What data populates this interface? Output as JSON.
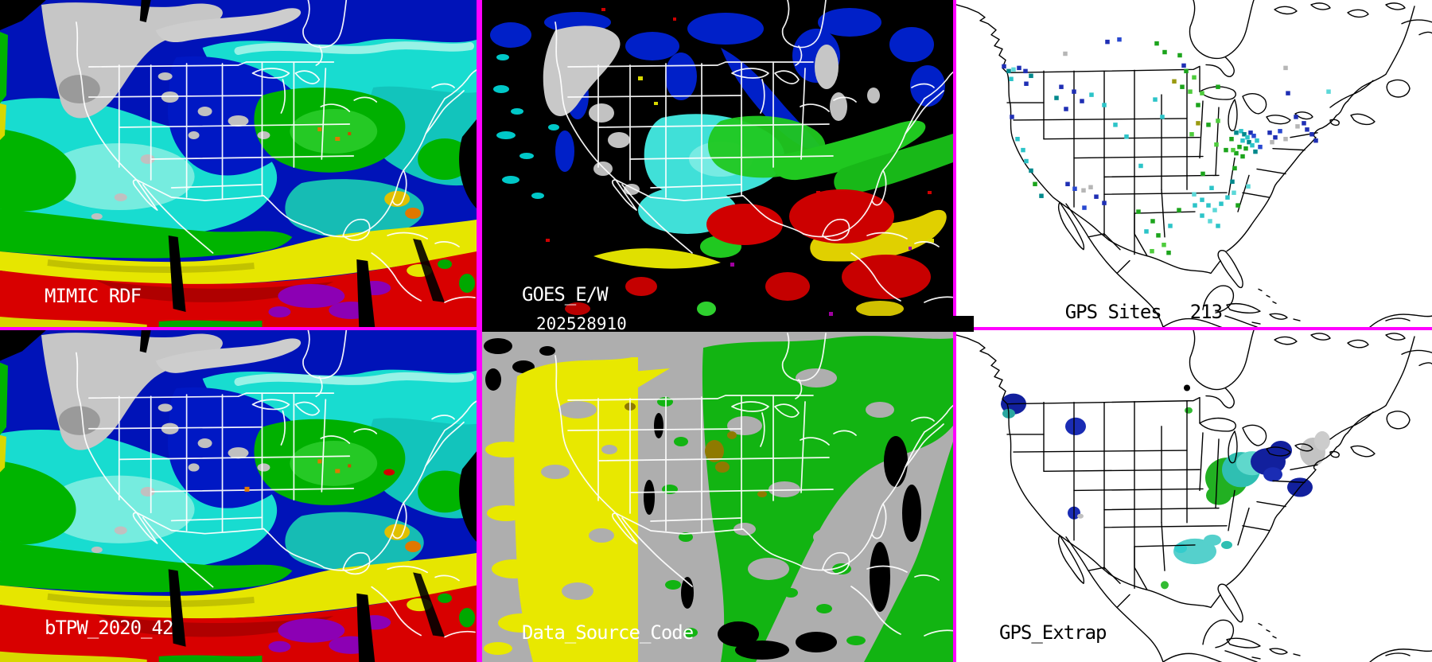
{
  "panels": {
    "mimic_rdf": {
      "label": "MIMIC RDF"
    },
    "goes_ew": {
      "label": "GOES_E/W",
      "timestamp": "202528910"
    },
    "gps_sites": {
      "label": "GPS Sites",
      "count": "213"
    },
    "btpw": {
      "label": "bTPW_2020_42"
    },
    "data_source_code": {
      "label": "Data_Source_Code"
    },
    "gps_extrap": {
      "label": "GPS_Extrap"
    }
  },
  "colors": {
    "panel_border": "#ff00ff",
    "label_light": "#ffffff",
    "label_dark": "#000000",
    "timestamp_bar": "#000000",
    "tpw_deep_blue": "#0013b8",
    "tpw_cyan": "#18dcd0",
    "tpw_pale_cyan": "#aef6ea",
    "tpw_teal": "#12c4bc",
    "tpw_green": "#00b400",
    "tpw_yellow": "#e6e600",
    "tpw_red": "#d80000",
    "tpw_purple": "#8c00b4",
    "cloud_gray": "#c6c6c6",
    "goes_background": "#000000",
    "source_gray": "#aeaeae",
    "source_yellow": "#e8e800",
    "source_green": "#12b412",
    "source_olive": "#8f7a00",
    "map_outline_light": "#ffffff",
    "map_outline_dark": "#000000",
    "gps_background": "#ffffff"
  },
  "dot_palette": {
    "navy": "#1f2fb4",
    "blue": "#2848d0",
    "teal": "#00888c",
    "cyan": "#2cc4c8",
    "ltcyan": "#5cd8d8",
    "green": "#1ca41c",
    "ltgreen": "#4ecc3c",
    "gray": "#b6b6b6",
    "olive": "#9a9a10"
  },
  "gps_sites_points": [
    [
      60,
      84,
      "navy"
    ],
    [
      66,
      90,
      "teal"
    ],
    [
      72,
      88,
      "ltcyan"
    ],
    [
      79,
      86,
      "navy"
    ],
    [
      87,
      90,
      "navy"
    ],
    [
      69,
      100,
      "cyan"
    ],
    [
      88,
      106,
      "navy"
    ],
    [
      94,
      96,
      "teal"
    ],
    [
      132,
      110,
      "navy"
    ],
    [
      148,
      116,
      "navy"
    ],
    [
      126,
      124,
      "teal"
    ],
    [
      158,
      128,
      "navy"
    ],
    [
      138,
      138,
      "navy"
    ],
    [
      170,
      120,
      "cyan"
    ],
    [
      190,
      53,
      "navy"
    ],
    [
      137,
      68,
      "gray"
    ],
    [
      205,
      50,
      "blue"
    ],
    [
      186,
      133,
      "cyan"
    ],
    [
      200,
      158,
      "cyan"
    ],
    [
      214,
      173,
      "cyan"
    ],
    [
      70,
      148,
      "navy"
    ],
    [
      77,
      176,
      "cyan"
    ],
    [
      84,
      190,
      "cyan"
    ],
    [
      94,
      216,
      "teal"
    ],
    [
      99,
      233,
      "green"
    ],
    [
      107,
      248,
      "teal"
    ],
    [
      88,
      204,
      "cyan"
    ],
    [
      140,
      233,
      "navy"
    ],
    [
      149,
      239,
      "blue"
    ],
    [
      160,
      241,
      "gray"
    ],
    [
      169,
      237,
      "gray"
    ],
    [
      176,
      249,
      "navy"
    ],
    [
      161,
      263,
      "blue"
    ],
    [
      186,
      257,
      "navy"
    ],
    [
      229,
      268,
      "green"
    ],
    [
      247,
      280,
      "green"
    ],
    [
      254,
      298,
      "green"
    ],
    [
      261,
      310,
      "ltgreen"
    ],
    [
      267,
      320,
      "green"
    ],
    [
      239,
      293,
      "cyan"
    ],
    [
      269,
      286,
      "cyan"
    ],
    [
      280,
      266,
      "green"
    ],
    [
      246,
      318,
      "ltgreen"
    ],
    [
      281,
      70,
      "green"
    ],
    [
      286,
      83,
      "navy"
    ],
    [
      289,
      90,
      "green"
    ],
    [
      299,
      98,
      "ltgreen"
    ],
    [
      284,
      110,
      "green"
    ],
    [
      294,
      116,
      "ltgreen"
    ],
    [
      274,
      103,
      "olive"
    ],
    [
      309,
      118,
      "ltgreen"
    ],
    [
      304,
      133,
      "green"
    ],
    [
      329,
      110,
      "green"
    ],
    [
      252,
      55,
      "green"
    ],
    [
      262,
      66,
      "green"
    ],
    [
      304,
      156,
      "olive"
    ],
    [
      317,
      158,
      "green"
    ],
    [
      329,
      153,
      "ltgreen"
    ],
    [
      327,
      183,
      "ltgreen"
    ],
    [
      339,
      190,
      "green"
    ],
    [
      296,
      170,
      "ltgreen"
    ],
    [
      352,
      168,
      "teal"
    ],
    [
      358,
      166,
      "cyan"
    ],
    [
      362,
      170,
      "teal"
    ],
    [
      366,
      174,
      "cyan"
    ],
    [
      370,
      168,
      "navy"
    ],
    [
      374,
      172,
      "blue"
    ],
    [
      360,
      178,
      "cyan"
    ],
    [
      368,
      180,
      "teal"
    ],
    [
      356,
      186,
      "green"
    ],
    [
      364,
      188,
      "green"
    ],
    [
      372,
      184,
      "cyan"
    ],
    [
      378,
      178,
      "cyan"
    ],
    [
      352,
      194,
      "green"
    ],
    [
      360,
      198,
      "green"
    ],
    [
      376,
      192,
      "teal"
    ],
    [
      382,
      186,
      "blue"
    ],
    [
      346,
      176,
      "green"
    ],
    [
      348,
      190,
      "ltgreen"
    ],
    [
      394,
      168,
      "navy"
    ],
    [
      401,
      174,
      "navy"
    ],
    [
      407,
      166,
      "blue"
    ],
    [
      397,
      180,
      "gray"
    ],
    [
      414,
      176,
      "gray"
    ],
    [
      429,
      160,
      "gray"
    ],
    [
      427,
      148,
      "navy"
    ],
    [
      437,
      156,
      "navy"
    ],
    [
      441,
      164,
      "navy"
    ],
    [
      447,
      170,
      "navy"
    ],
    [
      414,
      86,
      "gray"
    ],
    [
      417,
      118,
      "navy"
    ],
    [
      468,
      116,
      "ltcyan"
    ],
    [
      452,
      178,
      "navy"
    ],
    [
      299,
      246,
      "ltcyan"
    ],
    [
      309,
      253,
      "cyan"
    ],
    [
      317,
      260,
      "cyan"
    ],
    [
      325,
      266,
      "ltcyan"
    ],
    [
      333,
      258,
      "cyan"
    ],
    [
      341,
      250,
      "cyan"
    ],
    [
      349,
      244,
      "ltcyan"
    ],
    [
      321,
      238,
      "cyan"
    ],
    [
      347,
      230,
      "teal"
    ],
    [
      367,
      236,
      "ltcyan"
    ],
    [
      309,
      273,
      "cyan"
    ],
    [
      319,
      280,
      "ltcyan"
    ],
    [
      329,
      286,
      "cyan"
    ],
    [
      354,
      260,
      "green"
    ],
    [
      300,
      260,
      "cyan"
    ],
    [
      350,
      213,
      "green"
    ],
    [
      250,
      126,
      "cyan"
    ],
    [
      259,
      148,
      "cyan"
    ],
    [
      232,
      210,
      "cyan"
    ],
    [
      310,
      220,
      "green"
    ]
  ],
  "gps_extrap_blobs": [
    [
      448,
      152,
      16,
      18,
      "#c3c3c3"
    ],
    [
      460,
      138,
      10,
      12,
      "#cccccc"
    ],
    [
      340,
      184,
      27,
      25,
      "#22b022"
    ],
    [
      330,
      206,
      16,
      12,
      "#22b022"
    ],
    [
      292,
      100,
      5,
      4,
      "#33bb33"
    ],
    [
      262,
      318,
      5,
      5,
      "#33bb33"
    ],
    [
      358,
      174,
      24,
      22,
      "#2fbfb2"
    ],
    [
      372,
      166,
      20,
      15,
      "#5fd8cc"
    ],
    [
      300,
      276,
      27,
      16,
      "#55d0cc"
    ],
    [
      322,
      262,
      11,
      7,
      "#55d0cc"
    ],
    [
      340,
      268,
      7,
      5,
      "#2fbfb2"
    ],
    [
      282,
      272,
      8,
      6,
      "#33cccc"
    ],
    [
      392,
      164,
      22,
      17,
      "#12209d"
    ],
    [
      408,
      150,
      14,
      12,
      "#12209d"
    ],
    [
      398,
      180,
      12,
      9,
      "#1a2cb4"
    ],
    [
      432,
      196,
      16,
      12,
      "#12209d"
    ],
    [
      72,
      92,
      16,
      13,
      "#12209d"
    ],
    [
      66,
      104,
      8,
      6,
      "#2aa7a0"
    ],
    [
      150,
      120,
      13,
      11,
      "#1a2cb4"
    ],
    [
      148,
      228,
      8,
      8,
      "#1a2cb4"
    ],
    [
      156,
      232,
      4,
      3,
      "#c0c0c0"
    ],
    [
      290,
      72,
      4,
      4,
      "#000000"
    ]
  ]
}
